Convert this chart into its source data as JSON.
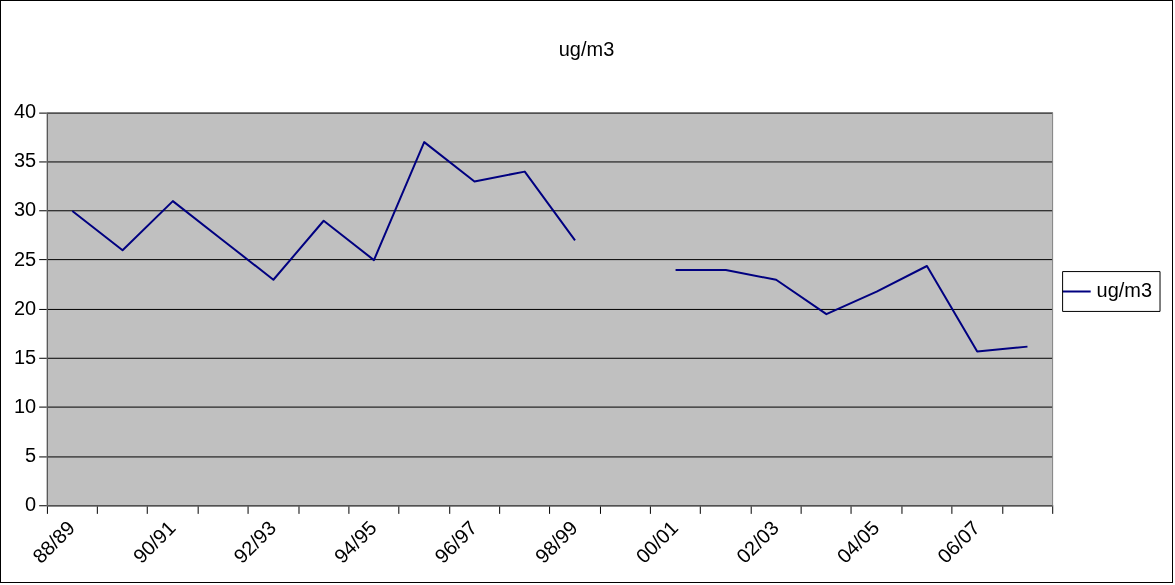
{
  "chart_data": {
    "type": "line",
    "title": "ug/m3",
    "categories": [
      "88/89",
      null,
      "90/91",
      null,
      "92/93",
      null,
      "94/95",
      null,
      "96/97",
      null,
      "98/99",
      null,
      "00/01",
      null,
      "02/03",
      null,
      "04/05",
      null,
      "06/07",
      null
    ],
    "series": [
      {
        "name": "ug/m3",
        "color": "#000080",
        "values": [
          30,
          26,
          31,
          27,
          23,
          29,
          25,
          37,
          33,
          34,
          27,
          null,
          24,
          24,
          23,
          19.5,
          21.8,
          24.4,
          15.7,
          16.2
        ]
      }
    ],
    "ylim": [
      0,
      40
    ],
    "yticks": [
      0,
      5,
      10,
      15,
      20,
      25,
      30,
      35,
      40
    ],
    "grid": "y",
    "legend": "right",
    "marker": "none",
    "line_style": "solid"
  }
}
